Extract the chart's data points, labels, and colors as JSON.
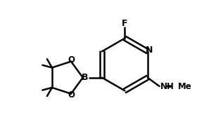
{
  "bg_color": "#ffffff",
  "bond_color": "#000000",
  "atom_colors": {
    "F": "#000000",
    "N": "#000000",
    "O": "#000000",
    "B": "#000000",
    "C": "#000000"
  },
  "line_width": 1.8,
  "font_size_atoms": 9,
  "font_size_small": 7.5,
  "figsize": [
    2.8,
    1.84
  ],
  "dpi": 100
}
